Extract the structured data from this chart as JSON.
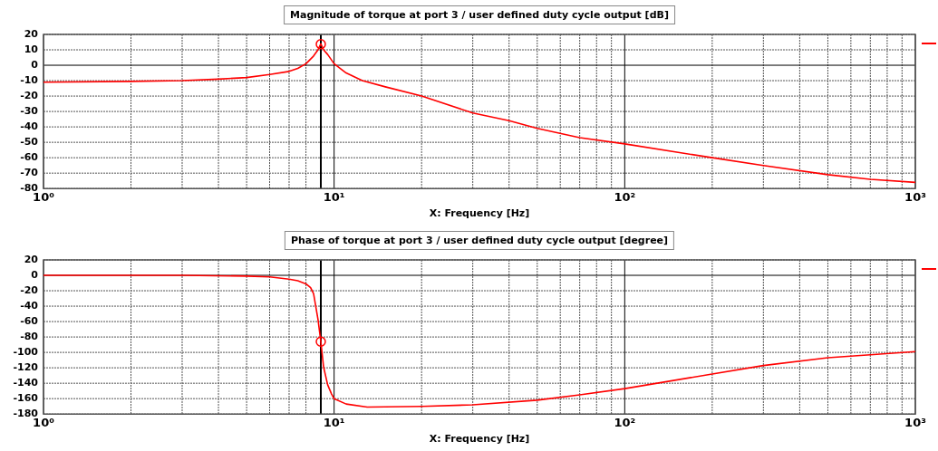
{
  "chart_data": [
    {
      "type": "line",
      "title": "Magnitude of torque at port 3 / user defined duty cycle output [dB]",
      "xlabel": "X: Frequency [Hz]",
      "log": "x",
      "xlim": [
        1,
        1000
      ],
      "xticks": [
        {
          "value": 1,
          "label": "10⁰"
        },
        {
          "value": 2,
          "label": null
        },
        {
          "value": 3,
          "label": null
        },
        {
          "value": 4,
          "label": null
        },
        {
          "value": 5,
          "label": null
        },
        {
          "value": 6,
          "label": null
        },
        {
          "value": 7,
          "label": null
        },
        {
          "value": 8,
          "label": null
        },
        {
          "value": 9,
          "label": null
        },
        {
          "value": 10,
          "label": "10¹"
        },
        {
          "value": 20,
          "label": null
        },
        {
          "value": 30,
          "label": null
        },
        {
          "value": 40,
          "label": null
        },
        {
          "value": 50,
          "label": null
        },
        {
          "value": 60,
          "label": null
        },
        {
          "value": 70,
          "label": null
        },
        {
          "value": 80,
          "label": null
        },
        {
          "value": 90,
          "label": null
        },
        {
          "value": 100,
          "label": "10²"
        },
        {
          "value": 200,
          "label": null
        },
        {
          "value": 300,
          "label": null
        },
        {
          "value": 400,
          "label": null
        },
        {
          "value": 500,
          "label": null
        },
        {
          "value": 600,
          "label": null
        },
        {
          "value": 700,
          "label": null
        },
        {
          "value": 800,
          "label": null
        },
        {
          "value": 900,
          "label": null
        },
        {
          "value": 1000,
          "label": "10³"
        }
      ],
      "ylim": [
        -80,
        20
      ],
      "yticks": [
        -80,
        -70,
        -60,
        -50,
        -40,
        -30,
        -20,
        -10,
        0,
        10,
        20
      ],
      "grid": true,
      "ref_lines": [
        {
          "axis": "x",
          "value": 9,
          "color": "#000000",
          "line_style": "solid"
        }
      ],
      "series": [
        {
          "color": "#ff0000",
          "marker": "none",
          "line_style": "solid",
          "x": [
            1,
            2,
            3,
            4,
            5,
            6,
            7,
            7.5,
            8,
            8.5,
            8.8,
            9,
            9.2,
            9.5,
            10,
            11,
            12.5,
            15,
            20,
            30,
            40,
            50,
            70,
            100,
            200,
            300,
            500,
            700,
            1000
          ],
          "values": [
            -11,
            -10.5,
            -10,
            -9,
            -8,
            -6,
            -4,
            -2,
            1,
            6,
            10,
            14,
            10,
            7,
            1,
            -5,
            -10,
            -14,
            -20,
            -31,
            -36,
            -41,
            -47,
            -51,
            -60,
            -65,
            -71,
            -74,
            -76
          ]
        },
        {
          "type": "scatter",
          "color": "#ff0000",
          "marker": "circle",
          "x": [
            9
          ],
          "values": [
            13.7
          ]
        }
      ]
    },
    {
      "type": "line",
      "title": "Phase of torque at port 3 / user defined duty cycle output [degree]",
      "xlabel": "X: Frequency [Hz]",
      "log": "x",
      "xlim": [
        1,
        1000
      ],
      "xticks": [
        {
          "value": 1,
          "label": "10⁰"
        },
        {
          "value": 2,
          "label": null
        },
        {
          "value": 3,
          "label": null
        },
        {
          "value": 4,
          "label": null
        },
        {
          "value": 5,
          "label": null
        },
        {
          "value": 6,
          "label": null
        },
        {
          "value": 7,
          "label": null
        },
        {
          "value": 8,
          "label": null
        },
        {
          "value": 9,
          "label": null
        },
        {
          "value": 10,
          "label": "10¹"
        },
        {
          "value": 20,
          "label": null
        },
        {
          "value": 30,
          "label": null
        },
        {
          "value": 40,
          "label": null
        },
        {
          "value": 50,
          "label": null
        },
        {
          "value": 60,
          "label": null
        },
        {
          "value": 70,
          "label": null
        },
        {
          "value": 80,
          "label": null
        },
        {
          "value": 90,
          "label": null
        },
        {
          "value": 100,
          "label": "10²"
        },
        {
          "value": 200,
          "label": null
        },
        {
          "value": 300,
          "label": null
        },
        {
          "value": 400,
          "label": null
        },
        {
          "value": 500,
          "label": null
        },
        {
          "value": 600,
          "label": null
        },
        {
          "value": 700,
          "label": null
        },
        {
          "value": 800,
          "label": null
        },
        {
          "value": 900,
          "label": null
        },
        {
          "value": 1000,
          "label": "10³"
        }
      ],
      "ylim": [
        -180,
        20
      ],
      "yticks": [
        -180,
        -160,
        -140,
        -120,
        -100,
        -80,
        -60,
        -40,
        -20,
        0,
        20
      ],
      "grid": true,
      "ref_lines": [
        {
          "axis": "x",
          "value": 9,
          "color": "#000000",
          "line_style": "solid"
        }
      ],
      "series": [
        {
          "color": "#ff0000",
          "marker": "none",
          "line_style": "solid",
          "x": [
            1,
            3,
            5,
            6,
            7,
            7.5,
            8,
            8.3,
            8.5,
            8.8,
            9,
            9.2,
            9.5,
            9.8,
            10,
            11,
            13,
            20,
            30,
            50,
            70,
            100,
            200,
            300,
            500,
            700,
            1000
          ],
          "values": [
            0,
            0,
            -1,
            -2,
            -5,
            -7,
            -11,
            -16,
            -24,
            -57,
            -86,
            -119,
            -142,
            -154,
            -160,
            -167,
            -171,
            -170,
            -168,
            -162,
            -155,
            -147,
            -128,
            -117,
            -107,
            -103,
            -99
          ]
        },
        {
          "type": "scatter",
          "color": "#ff0000",
          "marker": "circle",
          "x": [
            9
          ],
          "values": [
            -86
          ]
        }
      ]
    }
  ]
}
